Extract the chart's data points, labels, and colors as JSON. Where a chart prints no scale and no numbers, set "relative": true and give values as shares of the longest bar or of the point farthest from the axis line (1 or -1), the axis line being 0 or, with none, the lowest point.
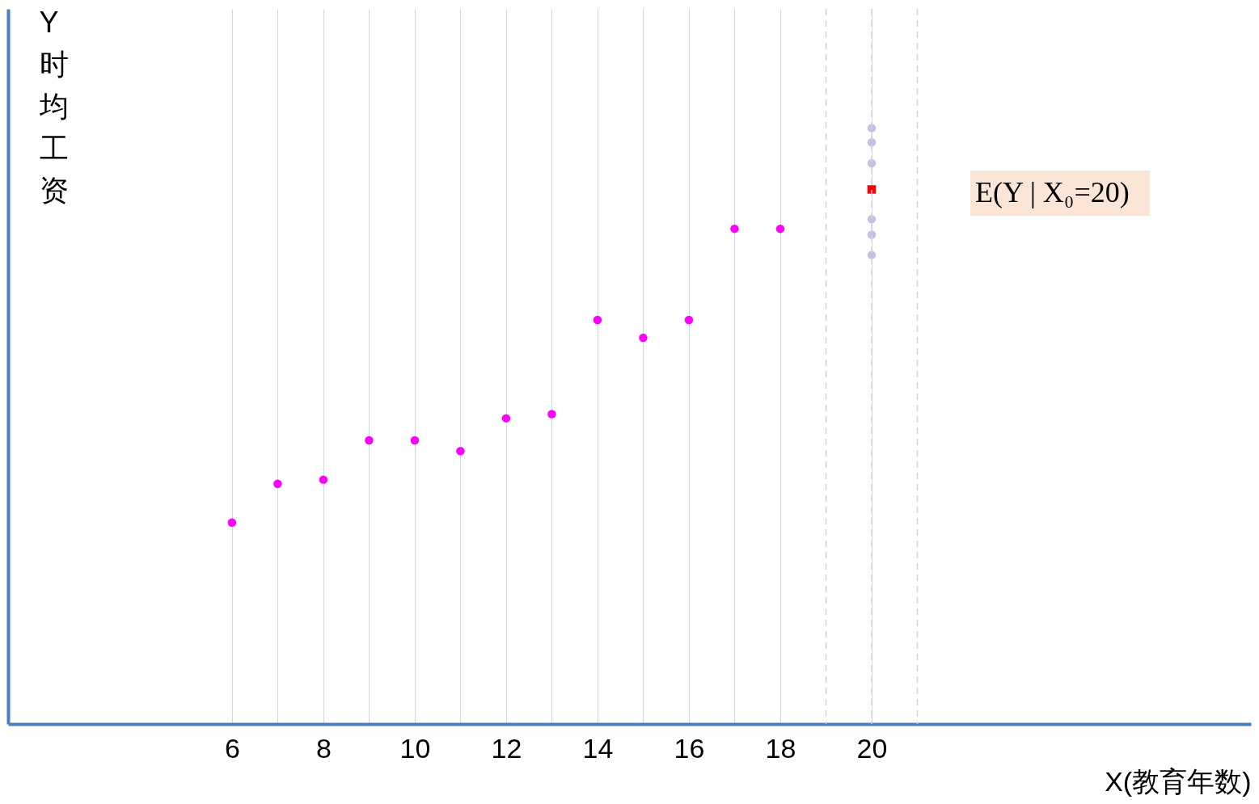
{
  "chart_data": {
    "type": "scatter",
    "relative": true,
    "xlabel": "X(教育年数)",
    "ylabel": "Y\n时均工资",
    "xlim": [
      1.1,
      28.3
    ],
    "xticks": [
      6,
      {
        "value": 7,
        "label": null
      },
      8,
      {
        "value": 9,
        "label": null
      },
      10,
      {
        "value": 11,
        "label": null
      },
      12,
      {
        "value": 13,
        "label": null
      },
      14,
      {
        "value": 15,
        "label": null
      },
      16,
      {
        "value": 17,
        "label": null
      },
      18,
      20
    ],
    "grid": "x",
    "series": [
      {
        "color": "#ff00ff",
        "marker": "circle",
        "x": [
          6,
          7,
          8,
          9,
          10,
          11,
          12,
          13,
          14,
          15,
          16,
          17,
          18
        ],
        "values": [
          0.338,
          0.403,
          0.41,
          0.476,
          0.476,
          0.458,
          0.513,
          0.52,
          0.678,
          0.648,
          0.678,
          0.831,
          0.831
        ]
      },
      {
        "color": "#c8c0e0",
        "marker": "circle",
        "x": [
          20,
          20,
          20,
          20,
          20,
          20
        ],
        "values": [
          1.0,
          0.976,
          0.941,
          0.847,
          0.821,
          0.787
        ]
      },
      {
        "color": "#ff0000",
        "marker": "square",
        "x": [
          20
        ],
        "values": [
          0.897
        ]
      }
    ],
    "ref_lines": [
      {
        "axis": "x",
        "value": 19,
        "color": "#d0d0e8",
        "line_style": "dashed"
      },
      {
        "axis": "x",
        "value": 20,
        "color": "#d0d0e8",
        "line_style": "dashed"
      },
      {
        "axis": "x",
        "value": 21,
        "color": "#d0d0e8",
        "line_style": "dashed"
      }
    ],
    "annotations": [
      "E(Y | X₀=20)"
    ]
  }
}
